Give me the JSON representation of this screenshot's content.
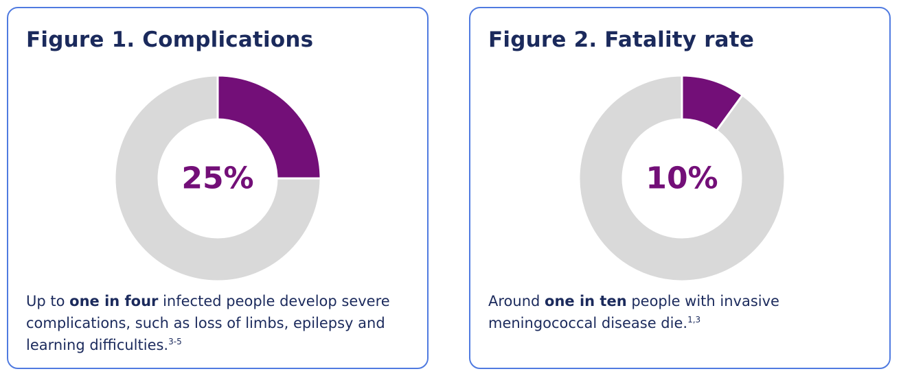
{
  "colors": {
    "accent": "#730f78",
    "track": "#d9d9d9",
    "heading": "#1b2a5c",
    "border": "#4f7ae0"
  },
  "chart_data": [
    {
      "type": "pie",
      "title": "Figure 1. Complications",
      "categories": [
        "Complications",
        "Other"
      ],
      "values": [
        25,
        75
      ],
      "center_label": "25%"
    },
    {
      "type": "pie",
      "title": "Figure 2. Fatality rate",
      "categories": [
        "Fatal",
        "Other"
      ],
      "values": [
        10,
        90
      ],
      "center_label": "10%"
    }
  ],
  "captions": [
    {
      "before": "Up to ",
      "bold": "one in four",
      "after": " infected people develop severe complications, such as loss of limbs, epilepsy and learning difficulties.",
      "sup": "3-5"
    },
    {
      "before": "Around ",
      "bold": "one in ten",
      "after": " people with invasive meningococcal disease die.",
      "sup": "1,3"
    }
  ]
}
